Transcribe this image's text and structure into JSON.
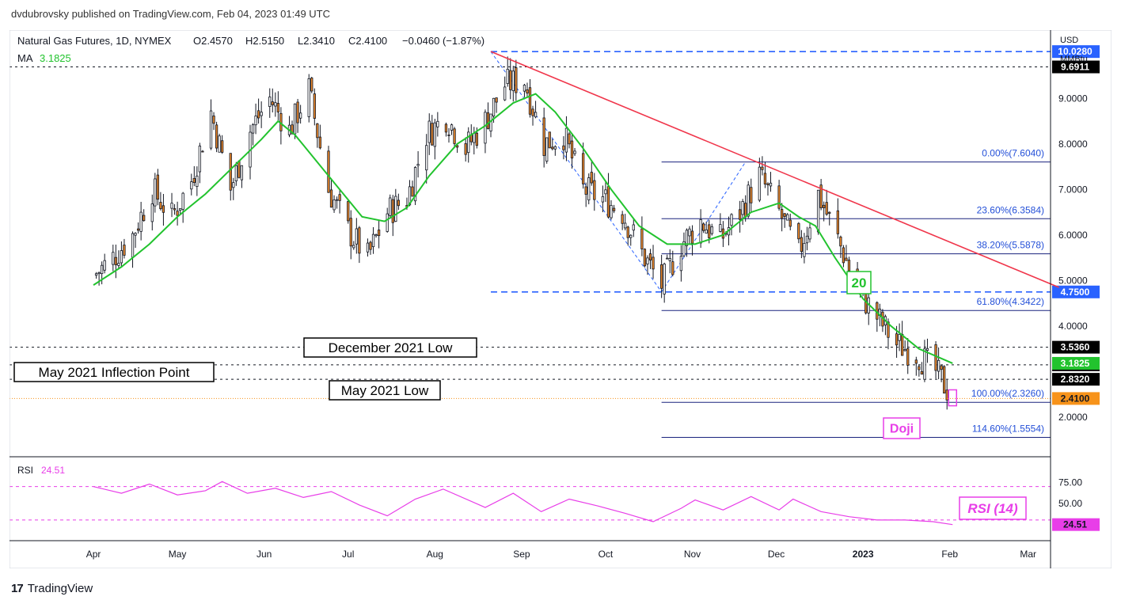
{
  "publisher": "dvdubrovsky published on TradingView.com, Feb 04, 2023 01:49 UTC",
  "legend": {
    "symbol": "Natural Gas Futures, 1D, NYMEX",
    "o": "O2.4570",
    "h": "H2.5150",
    "l": "L2.3410",
    "c": "C2.4100",
    "chg": "−0.0460 (−1.87%)",
    "ma_label": "MA",
    "ma_value": "3.1825"
  },
  "axis": {
    "currency": "USD",
    "unit": "MMBtu"
  },
  "annotations": {
    "dec_low": "December 2021 Low",
    "may_inflection": "May 2021 Inflection Point",
    "may_low": "May 2021 Low",
    "ma_period": "20",
    "doji": "Doji",
    "rsi_title": "RSI (14)"
  },
  "rsi_legend": {
    "label": "RSI",
    "value": "24.51"
  },
  "footer": {
    "logo_mark": "17",
    "logo_text": "TradingView"
  },
  "colors": {
    "up": "#ffffff",
    "down": "#e8862a",
    "wick": "#131722",
    "ma": "#22c32e",
    "trend": "#f0364b",
    "fib": "#1a237e",
    "rsi": "#e83ee8",
    "blue_tag": "#2962ff",
    "green_tag": "#22c32e",
    "orange_tag": "#f7931a",
    "magenta_tag": "#e83ee8",
    "dark_tag": "#000000"
  },
  "chart_data": [
    {
      "type": "candlestick",
      "title": "Natural Gas Futures, 1D, NYMEX",
      "ylim": [
        1.2,
        10.5
      ],
      "y_ticks": [
        "9.0000",
        "8.0000",
        "7.0000",
        "6.0000",
        "5.0000",
        "4.0000",
        "2.0000"
      ],
      "y_tick_values": [
        9.0,
        8.0,
        7.0,
        6.0,
        5.0,
        4.0,
        2.0
      ],
      "x_ticks": [
        "Apr",
        "May",
        "Jun",
        "Jul",
        "Aug",
        "Sep",
        "Oct",
        "Nov",
        "Dec",
        "2023",
        "Feb",
        "Mar"
      ],
      "x_tick_days": [
        0,
        30,
        61,
        91,
        122,
        153,
        183,
        214,
        244,
        275,
        306,
        334
      ],
      "closes": [
        {
          "day": 0,
          "c": 5.1
        },
        {
          "day": 7,
          "c": 5.5
        },
        {
          "day": 14,
          "c": 6.0
        },
        {
          "day": 21,
          "c": 7.0
        },
        {
          "day": 28,
          "c": 6.4
        },
        {
          "day": 35,
          "c": 7.2
        },
        {
          "day": 42,
          "c": 8.7
        },
        {
          "day": 49,
          "c": 7.0
        },
        {
          "day": 56,
          "c": 8.3
        },
        {
          "day": 63,
          "c": 9.0
        },
        {
          "day": 70,
          "c": 8.3
        },
        {
          "day": 77,
          "c": 9.2
        },
        {
          "day": 84,
          "c": 7.0
        },
        {
          "day": 91,
          "c": 6.1
        },
        {
          "day": 98,
          "c": 5.5
        },
        {
          "day": 105,
          "c": 6.5
        },
        {
          "day": 112,
          "c": 6.8
        },
        {
          "day": 119,
          "c": 8.2
        },
        {
          "day": 126,
          "c": 8.6
        },
        {
          "day": 133,
          "c": 7.9
        },
        {
          "day": 140,
          "c": 8.5
        },
        {
          "day": 147,
          "c": 9.3
        },
        {
          "day": 154,
          "c": 9.4
        },
        {
          "day": 161,
          "c": 8.0
        },
        {
          "day": 168,
          "c": 8.2
        },
        {
          "day": 175,
          "c": 7.0
        },
        {
          "day": 182,
          "c": 6.8
        },
        {
          "day": 189,
          "c": 6.5
        },
        {
          "day": 196,
          "c": 5.6
        },
        {
          "day": 203,
          "c": 4.9
        },
        {
          "day": 210,
          "c": 5.8
        },
        {
          "day": 217,
          "c": 6.3
        },
        {
          "day": 224,
          "c": 5.9
        },
        {
          "day": 231,
          "c": 6.5
        },
        {
          "day": 238,
          "c": 7.3
        },
        {
          "day": 245,
          "c": 6.5
        },
        {
          "day": 252,
          "c": 5.6
        },
        {
          "day": 259,
          "c": 6.9
        },
        {
          "day": 266,
          "c": 5.9
        },
        {
          "day": 273,
          "c": 4.8
        },
        {
          "day": 280,
          "c": 4.2
        },
        {
          "day": 287,
          "c": 3.6
        },
        {
          "day": 294,
          "c": 3.4
        },
        {
          "day": 301,
          "c": 3.0
        },
        {
          "day": 307,
          "c": 2.41
        }
      ],
      "moving_average": {
        "name": "MA",
        "period": 20,
        "last": 3.1825,
        "points": [
          [
            0,
            4.9
          ],
          [
            10,
            5.3
          ],
          [
            20,
            5.8
          ],
          [
            30,
            6.4
          ],
          [
            40,
            6.9
          ],
          [
            50,
            7.5
          ],
          [
            60,
            8.1
          ],
          [
            66,
            8.5
          ],
          [
            72,
            8.2
          ],
          [
            80,
            7.6
          ],
          [
            88,
            7.0
          ],
          [
            96,
            6.4
          ],
          [
            104,
            6.3
          ],
          [
            112,
            6.6
          ],
          [
            120,
            7.3
          ],
          [
            130,
            8.0
          ],
          [
            140,
            8.4
          ],
          [
            150,
            8.9
          ],
          [
            158,
            9.1
          ],
          [
            165,
            8.7
          ],
          [
            175,
            7.9
          ],
          [
            185,
            7.0
          ],
          [
            195,
            6.2
          ],
          [
            205,
            5.8
          ],
          [
            215,
            5.8
          ],
          [
            225,
            6.0
          ],
          [
            235,
            6.5
          ],
          [
            245,
            6.7
          ],
          [
            252,
            6.4
          ],
          [
            258,
            6.2
          ],
          [
            265,
            5.5
          ],
          [
            275,
            4.6
          ],
          [
            285,
            4.0
          ],
          [
            295,
            3.5
          ],
          [
            307,
            3.1825
          ]
        ]
      },
      "fibonacci": [
        {
          "label": "0.00%(7.6040)",
          "value": 7.604
        },
        {
          "label": "23.60%(6.3584)",
          "value": 6.3584
        },
        {
          "label": "38.20%(5.5878)",
          "value": 5.5878
        },
        {
          "label": "61.80%(4.3422)",
          "value": 4.3422
        },
        {
          "label": "100.00%(2.3260)",
          "value": 2.326
        },
        {
          "label": "114.60%(1.5554)",
          "value": 1.5554
        }
      ],
      "horizontal_levels": [
        {
          "value": 10.028,
          "tag": "10.0280",
          "style": "blue-dashed"
        },
        {
          "value": 9.6911,
          "tag": "9.6911",
          "style": "black-dashed"
        },
        {
          "value": 4.75,
          "tag": "4.7500",
          "style": "blue-dashed"
        },
        {
          "value": 3.536,
          "tag": "3.5360",
          "style": "black-dashed"
        },
        {
          "value": 3.15,
          "tag": "3.1500",
          "style": "black-dashed"
        },
        {
          "value": 2.832,
          "tag": "2.8320",
          "style": "black-dashed"
        }
      ],
      "price_tags": [
        {
          "value": 3.1825,
          "tag": "3.1825",
          "style": "green"
        },
        {
          "value": 2.41,
          "tag": "2.4100",
          "style": "orange"
        }
      ],
      "trendline": {
        "from": [
          142,
          10.028
        ],
        "to": [
          345,
          4.85
        ]
      }
    },
    {
      "type": "line",
      "title": "RSI",
      "ylim": [
        10,
        100
      ],
      "y_ticks": [
        "75.00",
        "50.00"
      ],
      "y_tick_values": [
        75,
        50
      ],
      "levels": [
        70,
        30
      ],
      "last": 24.51,
      "x": [
        0,
        10,
        20,
        30,
        40,
        46,
        55,
        65,
        75,
        85,
        95,
        105,
        115,
        125,
        140,
        150,
        160,
        170,
        180,
        190,
        200,
        210,
        215,
        225,
        235,
        245,
        250,
        260,
        270,
        280,
        290,
        300,
        307
      ],
      "y": [
        70,
        62,
        73,
        60,
        65,
        76,
        62,
        68,
        57,
        64,
        48,
        35,
        55,
        67,
        45,
        62,
        40,
        55,
        47,
        38,
        28,
        44,
        54,
        42,
        58,
        42,
        55,
        40,
        34,
        30,
        30,
        28,
        24.51
      ]
    }
  ]
}
